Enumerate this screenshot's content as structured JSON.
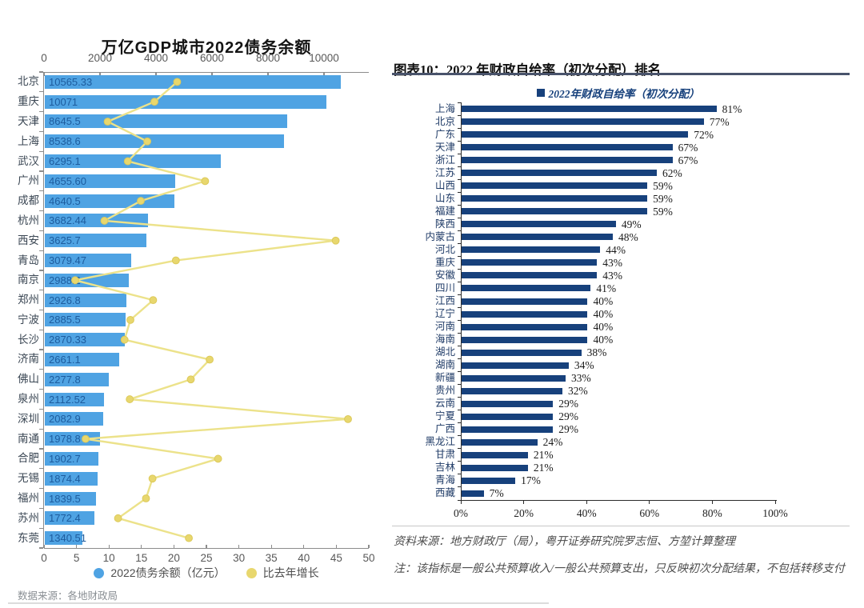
{
  "chart_data": [
    {
      "id": "debt-balance-chart",
      "type": "bar",
      "orientation": "horizontal",
      "title": "万亿GDP城市2022债务余额",
      "categories": [
        "北京",
        "重庆",
        "天津",
        "上海",
        "武汉",
        "广州",
        "成都",
        "杭州",
        "西安",
        "青岛",
        "南京",
        "郑州",
        "宁波",
        "长沙",
        "济南",
        "佛山",
        "泉州",
        "深圳",
        "南通",
        "合肥",
        "无锡",
        "福州",
        "苏州",
        "东莞"
      ],
      "series": [
        {
          "name": "2022债务余额（亿元）",
          "type": "bar",
          "values": [
            10565.33,
            10071,
            8645.5,
            8538.6,
            6295.1,
            4655.6,
            4640.5,
            3682.44,
            3625.7,
            3079.47,
            2988.2,
            2926.8,
            2885.5,
            2870.33,
            2661.1,
            2277.8,
            2112.52,
            2082.9,
            1978.8,
            1902.7,
            1874.4,
            1839.5,
            1772.4,
            1340.51
          ],
          "value_labels": [
            "10565.33",
            "10071",
            "8645.5",
            "8538.6",
            "6295.1",
            "4655.60",
            "4640.5",
            "3682.44",
            "3625.7",
            "3079.47",
            "2988.2",
            "2926.8",
            "2885.5",
            "2870.33",
            "2661.1",
            "2277.8",
            "2112.52",
            "2082.9",
            "1978.8",
            "1902.7",
            "1874.4",
            "1839.5",
            "1772.4",
            "1340.51"
          ]
        },
        {
          "name": "比去年增长",
          "type": "line",
          "values": [
            20.5,
            17,
            9.8,
            15.9,
            12.9,
            24.8,
            14.9,
            9.3,
            44.9,
            20.3,
            4.8,
            16.8,
            13.3,
            12.4,
            25.5,
            22.6,
            13.2,
            46.8,
            6.4,
            26.8,
            16.7,
            15.7,
            11.4,
            22.3
          ]
        }
      ],
      "bar_axis_max": 11600,
      "bar_ticks": [
        {
          "value": 0,
          "label": "0"
        },
        {
          "value": 2000,
          "label": "2000"
        },
        {
          "value": 4000,
          "label": "4000"
        },
        {
          "value": 6000,
          "label": "6000"
        },
        {
          "value": 8000,
          "label": "8000"
        },
        {
          "value": 10000,
          "label": "10000"
        }
      ],
      "line_axis_max": 50,
      "line_ticks": [
        {
          "value": 0,
          "label": "0"
        },
        {
          "value": 5,
          "label": "5"
        },
        {
          "value": 10,
          "label": "10"
        },
        {
          "value": 15,
          "label": "15"
        },
        {
          "value": 20,
          "label": "20"
        },
        {
          "value": 25,
          "label": "25"
        },
        {
          "value": 30,
          "label": "30"
        },
        {
          "value": 35,
          "label": "35"
        },
        {
          "value": 40,
          "label": "40"
        },
        {
          "value": 45,
          "label": "45"
        },
        {
          "value": 50,
          "label": "50"
        }
      ],
      "legend_position": "bottom",
      "grid": false,
      "source": "数据来源：各地财政局",
      "colors": {
        "bar": "#4fa3e3",
        "line": "#ece28a",
        "marker": "#e8d76e",
        "marker_edge": "#dcc959",
        "value_label": "#1d5c9e",
        "category": "#3b4754",
        "axis": "#8c8c8c"
      }
    },
    {
      "id": "fiscal-self-sufficiency-chart",
      "type": "bar",
      "orientation": "horizontal",
      "header": "图表10：2022 年财政自给率（初次分配）排名",
      "legend_label": "2022年财政自给率（初次分配）",
      "categories": [
        "上海",
        "北京",
        "广东",
        "天津",
        "浙江",
        "江苏",
        "山西",
        "山东",
        "福建",
        "陕西",
        "内蒙古",
        "河北",
        "重庆",
        "安徽",
        "四川",
        "江西",
        "辽宁",
        "河南",
        "海南",
        "湖北",
        "湖南",
        "新疆",
        "贵州",
        "云南",
        "宁夏",
        "广西",
        "黑龙江",
        "甘肃",
        "吉林",
        "青海",
        "西藏"
      ],
      "values": [
        81,
        77,
        72,
        67,
        67,
        62,
        59,
        59,
        59,
        49,
        48,
        44,
        43,
        43,
        41,
        40,
        40,
        40,
        40,
        38,
        34,
        33,
        32,
        29,
        29,
        29,
        24,
        21,
        21,
        17,
        7
      ],
      "value_labels": [
        "81%",
        "77%",
        "72%",
        "67%",
        "67%",
        "62%",
        "59%",
        "59%",
        "59%",
        "49%",
        "48%",
        "44%",
        "43%",
        "43%",
        "41%",
        "40%",
        "40%",
        "40%",
        "40%",
        "38%",
        "34%",
        "33%",
        "32%",
        "29%",
        "29%",
        "29%",
        "24%",
        "21%",
        "21%",
        "17%",
        "7%"
      ],
      "xlim": [
        0,
        100
      ],
      "x_ticks": [
        {
          "value": 0,
          "label": "0%"
        },
        {
          "value": 20,
          "label": "20%"
        },
        {
          "value": 40,
          "label": "40%"
        },
        {
          "value": 60,
          "label": "60%"
        },
        {
          "value": 80,
          "label": "80%"
        },
        {
          "value": 100,
          "label": "100%"
        }
      ],
      "legend_position": "top",
      "grid": false,
      "source": "资料来源：地方财政厅（局），粤开证券研究院罗志恒、方堃计算整理",
      "note": "注：该指标是一般公共预算收入/一般公共预算支出，只反映初次分配结果，不包括转移支付",
      "colors": {
        "bar": "#17417c",
        "category": "#1e3a66",
        "legend_text": "#17417c",
        "axis": "#2b2b2b"
      }
    }
  ]
}
